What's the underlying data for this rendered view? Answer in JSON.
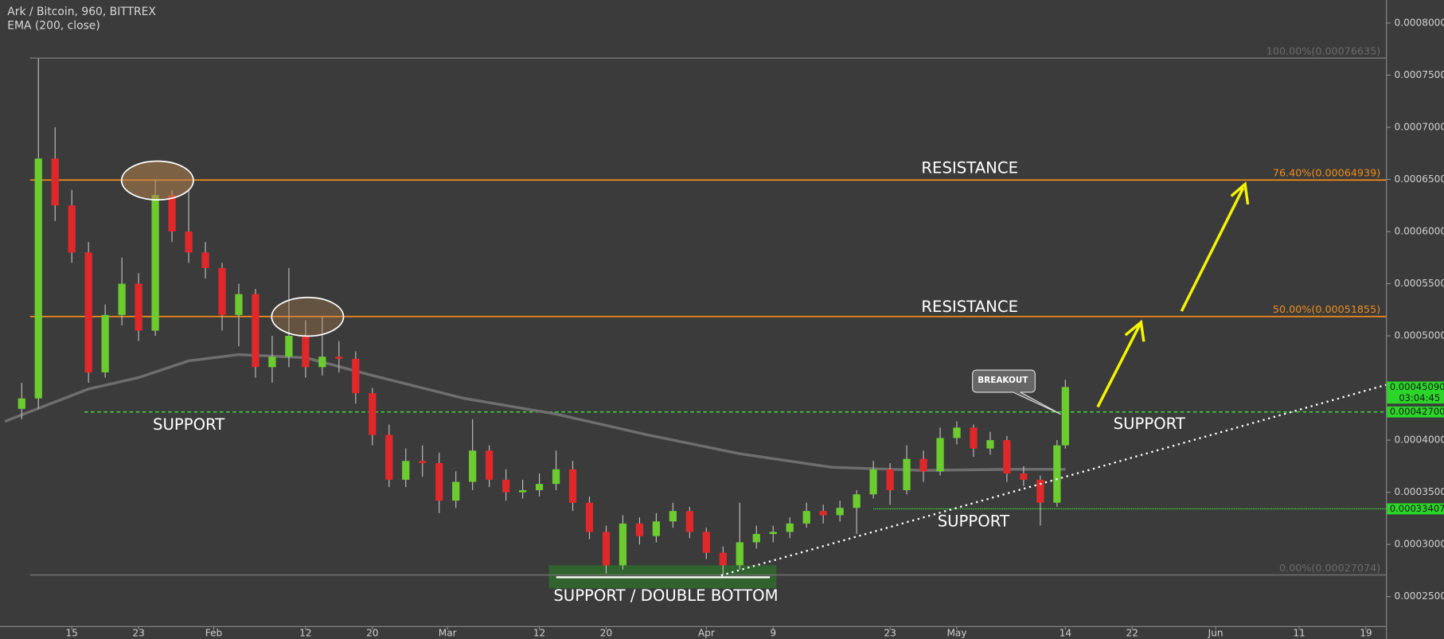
{
  "chart_data": {
    "type": "candlestick",
    "title": "Ark / Bitcoin, 960, BITTREX",
    "subtitle": "EMA (200, close)",
    "up_color": "#6ccc2f",
    "down_color": "#e0282a",
    "xlim": [
      5.4,
      171.4
    ],
    "ylim": [
      0.0002217,
      0.000822
    ],
    "xticks": [
      {
        "value": 14,
        "label": "15"
      },
      {
        "value": 22,
        "label": "23"
      },
      {
        "value": 31,
        "label": "Feb"
      },
      {
        "value": 42,
        "label": "12"
      },
      {
        "value": 50,
        "label": "20"
      },
      {
        "value": 59,
        "label": "Mar"
      },
      {
        "value": 70,
        "label": "12"
      },
      {
        "value": 78,
        "label": "20"
      },
      {
        "value": 90,
        "label": "Apr"
      },
      {
        "value": 98,
        "label": "9"
      },
      {
        "value": 112,
        "label": "23"
      },
      {
        "value": 120,
        "label": "May"
      },
      {
        "value": 133,
        "label": "14"
      },
      {
        "value": 141,
        "label": "22"
      },
      {
        "value": 151,
        "label": "Jun"
      },
      {
        "value": 161,
        "label": "11"
      },
      {
        "value": 169,
        "label": "19"
      }
    ],
    "yticks": [
      {
        "value": 0.00025,
        "label": "0.00025000"
      },
      {
        "value": 0.0003,
        "label": "0.00030000"
      },
      {
        "value": 0.00035,
        "label": "0.00035000"
      },
      {
        "value": 0.0004,
        "label": "0.00040000"
      },
      {
        "value": 0.00045,
        "label": "0.00045000"
      },
      {
        "value": 0.0005,
        "label": "0.00050000"
      },
      {
        "value": 0.00055,
        "label": "0.00055000"
      },
      {
        "value": 0.0006,
        "label": "0.00060000"
      },
      {
        "value": 0.00065,
        "label": "0.00065000"
      },
      {
        "value": 0.0007,
        "label": "0.00070000"
      },
      {
        "value": 0.00075,
        "label": "0.00075000"
      },
      {
        "value": 0.0008,
        "label": "0.00080000"
      }
    ],
    "x": [
      8,
      10,
      12,
      14,
      16,
      18,
      20,
      22,
      24,
      26,
      28,
      30,
      32,
      34,
      36,
      38,
      40,
      42,
      44,
      46,
      48,
      50,
      52,
      54,
      56,
      58,
      60,
      62,
      64,
      66,
      68,
      70,
      72,
      74,
      76,
      78,
      80,
      82,
      84,
      86,
      88,
      90,
      92,
      94,
      96,
      98,
      100,
      102,
      104,
      106,
      108,
      110,
      112,
      114,
      116,
      118,
      120,
      122,
      124,
      126,
      128,
      130,
      132,
      133
    ],
    "open": [
      0.00043,
      0.00044,
      0.00067,
      0.000625,
      0.00058,
      0.000465,
      0.00052,
      0.00055,
      0.000505,
      0.000635,
      0.0006,
      0.00058,
      0.000565,
      0.00052,
      0.00054,
      0.00047,
      0.00048,
      0.0005,
      0.00047,
      0.00048,
      0.000478,
      0.000445,
      0.000405,
      0.000362,
      0.00038,
      0.000378,
      0.000342,
      0.00036,
      0.00039,
      0.000362,
      0.00035,
      0.000352,
      0.000358,
      0.000372,
      0.00034,
      0.000312,
      0.00028,
      0.00032,
      0.000308,
      0.000322,
      0.000332,
      0.000312,
      0.000292,
      0.00028,
      0.000302,
      0.00031,
      0.000312,
      0.00032,
      0.000332,
      0.000328,
      0.000335,
      0.000348,
      0.000372,
      0.000352,
      0.000382,
      0.00037,
      0.000402,
      0.000412,
      0.000392,
      0.0004,
      0.000368,
      0.000362,
      0.00034,
      0.000395
    ],
    "high": [
      0.000455,
      0.000766,
      0.0007,
      0.00064,
      0.00059,
      0.00053,
      0.000575,
      0.00056,
      0.00065,
      0.00064,
      0.00064,
      0.00059,
      0.00057,
      0.00055,
      0.000545,
      0.0005,
      0.000565,
      0.000515,
      0.000518,
      0.000495,
      0.000485,
      0.00045,
      0.000415,
      0.000392,
      0.000395,
      0.000388,
      0.00037,
      0.00042,
      0.000395,
      0.000372,
      0.000362,
      0.000368,
      0.00039,
      0.00038,
      0.000346,
      0.000318,
      0.000328,
      0.000326,
      0.00033,
      0.00034,
      0.000336,
      0.000316,
      0.000298,
      0.00034,
      0.000318,
      0.000318,
      0.000326,
      0.00034,
      0.000338,
      0.000342,
      0.000352,
      0.00038,
      0.000378,
      0.000395,
      0.00039,
      0.000412,
      0.000418,
      0.000415,
      0.000408,
      0.000404,
      0.000375,
      0.000366,
      0.0004,
      0.000458
    ],
    "low": [
      0.00042,
      0.00043,
      0.00061,
      0.00057,
      0.000455,
      0.00046,
      0.00051,
      0.000495,
      0.0005,
      0.00059,
      0.00057,
      0.000555,
      0.000505,
      0.00049,
      0.00046,
      0.000455,
      0.00047,
      0.00046,
      0.000462,
      0.000465,
      0.000435,
      0.000395,
      0.000355,
      0.000355,
      0.000365,
      0.00033,
      0.000335,
      0.000352,
      0.000355,
      0.000342,
      0.000344,
      0.000346,
      0.000352,
      0.000332,
      0.000305,
      0.000272,
      0.000276,
      0.0003,
      0.000302,
      0.000316,
      0.000306,
      0.000286,
      0.000271,
      0.000276,
      0.000296,
      0.000302,
      0.000306,
      0.000316,
      0.00032,
      0.000322,
      0.00031,
      0.000344,
      0.000338,
      0.000348,
      0.00036,
      0.000366,
      0.000396,
      0.000384,
      0.000386,
      0.00036,
      0.000356,
      0.000318,
      0.000336,
      0.000392
    ],
    "close": [
      0.00044,
      0.00067,
      0.000625,
      0.00058,
      0.000465,
      0.00052,
      0.00055,
      0.000505,
      0.000635,
      0.0006,
      0.00058,
      0.000565,
      0.00052,
      0.00054,
      0.00047,
      0.00048,
      0.0005,
      0.00047,
      0.00048,
      0.000478,
      0.000445,
      0.000405,
      0.000362,
      0.00038,
      0.000378,
      0.000342,
      0.00036,
      0.00039,
      0.000362,
      0.00035,
      0.000352,
      0.000358,
      0.000372,
      0.00034,
      0.000312,
      0.00028,
      0.00032,
      0.000308,
      0.000322,
      0.000332,
      0.000312,
      0.000292,
      0.00028,
      0.000302,
      0.00031,
      0.000312,
      0.00032,
      0.000332,
      0.000328,
      0.000335,
      0.000348,
      0.000372,
      0.000352,
      0.000382,
      0.00037,
      0.000402,
      0.000412,
      0.000392,
      0.0004,
      0.000368,
      0.000362,
      0.00034,
      0.000395,
      0.0004509
    ],
    "ema": {
      "color": "#6e6e6e",
      "x": [
        6,
        16,
        22,
        28,
        34,
        42,
        50,
        61,
        72,
        83,
        94,
        105,
        116,
        127,
        133
      ],
      "values": [
        0.000418,
        0.000449,
        0.00046,
        0.000476,
        0.000482,
        0.000479,
        0.000462,
        0.00044,
        0.000425,
        0.000405,
        0.000387,
        0.000374,
        0.000371,
        0.000372,
        0.000372
      ]
    },
    "levels": [
      {
        "label": "100.00%(0.00076635)",
        "value": 0.00076635,
        "color": "#6a6a6a"
      },
      {
        "label": "76.40%(0.00064939)",
        "value": 0.00064939,
        "color": "#f08c1a"
      },
      {
        "label": "50.00%(0.00051855)",
        "value": 0.00051855,
        "color": "#f08c1a"
      },
      {
        "label": "0.00%(0.00027074)",
        "value": 0.00027074,
        "color": "#6a6a6a"
      }
    ],
    "support_lines": [
      {
        "value": 0.000427,
        "label": "0.00042700"
      },
      {
        "value": 0.00033407,
        "label": "0.00033407"
      }
    ],
    "last_price": {
      "value": 0.0004509,
      "label": "0.00045090"
    },
    "countdown": "03:04:45",
    "annotations": [
      "RESISTANCE",
      "RESISTANCE",
      "SUPPORT",
      "SUPPORT",
      "SUPPORT",
      "SUPPORT / DOUBLE BOTTOM",
      "BREAKOUT"
    ]
  }
}
